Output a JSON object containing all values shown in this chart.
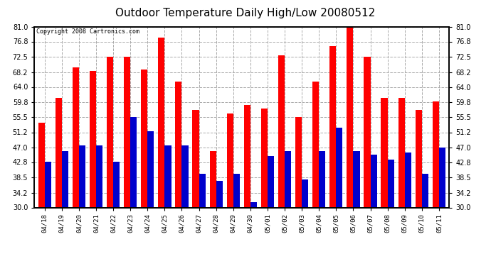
{
  "title": "Outdoor Temperature Daily High/Low 20080512",
  "copyright": "Copyright 2008 Cartronics.com",
  "dates": [
    "04/18",
    "04/19",
    "04/20",
    "04/21",
    "04/22",
    "04/23",
    "04/24",
    "04/25",
    "04/26",
    "04/27",
    "04/28",
    "04/29",
    "04/30",
    "05/01",
    "05/02",
    "05/03",
    "05/04",
    "05/05",
    "05/06",
    "05/07",
    "05/08",
    "05/09",
    "05/10",
    "05/11"
  ],
  "highs": [
    54.0,
    61.0,
    69.5,
    68.5,
    72.5,
    72.5,
    69.0,
    78.0,
    65.5,
    57.5,
    46.0,
    56.5,
    59.0,
    58.0,
    73.0,
    55.5,
    65.5,
    75.5,
    81.0,
    72.5,
    61.0,
    61.0,
    57.5,
    60.0
  ],
  "lows": [
    43.0,
    46.0,
    47.5,
    47.5,
    43.0,
    55.5,
    51.5,
    47.5,
    47.5,
    39.5,
    37.5,
    39.5,
    31.5,
    44.5,
    46.0,
    38.0,
    46.0,
    52.5,
    46.0,
    45.0,
    43.5,
    45.5,
    39.5,
    47.0
  ],
  "ylim": [
    30.0,
    81.0
  ],
  "yticks": [
    30.0,
    34.2,
    38.5,
    42.8,
    47.0,
    51.2,
    55.5,
    59.8,
    64.0,
    68.2,
    72.5,
    76.8,
    81.0
  ],
  "high_color": "#ff0000",
  "low_color": "#0000cc",
  "bg_color": "#ffffff",
  "grid_color": "#aaaaaa",
  "title_fontsize": 11,
  "bar_width": 0.38
}
